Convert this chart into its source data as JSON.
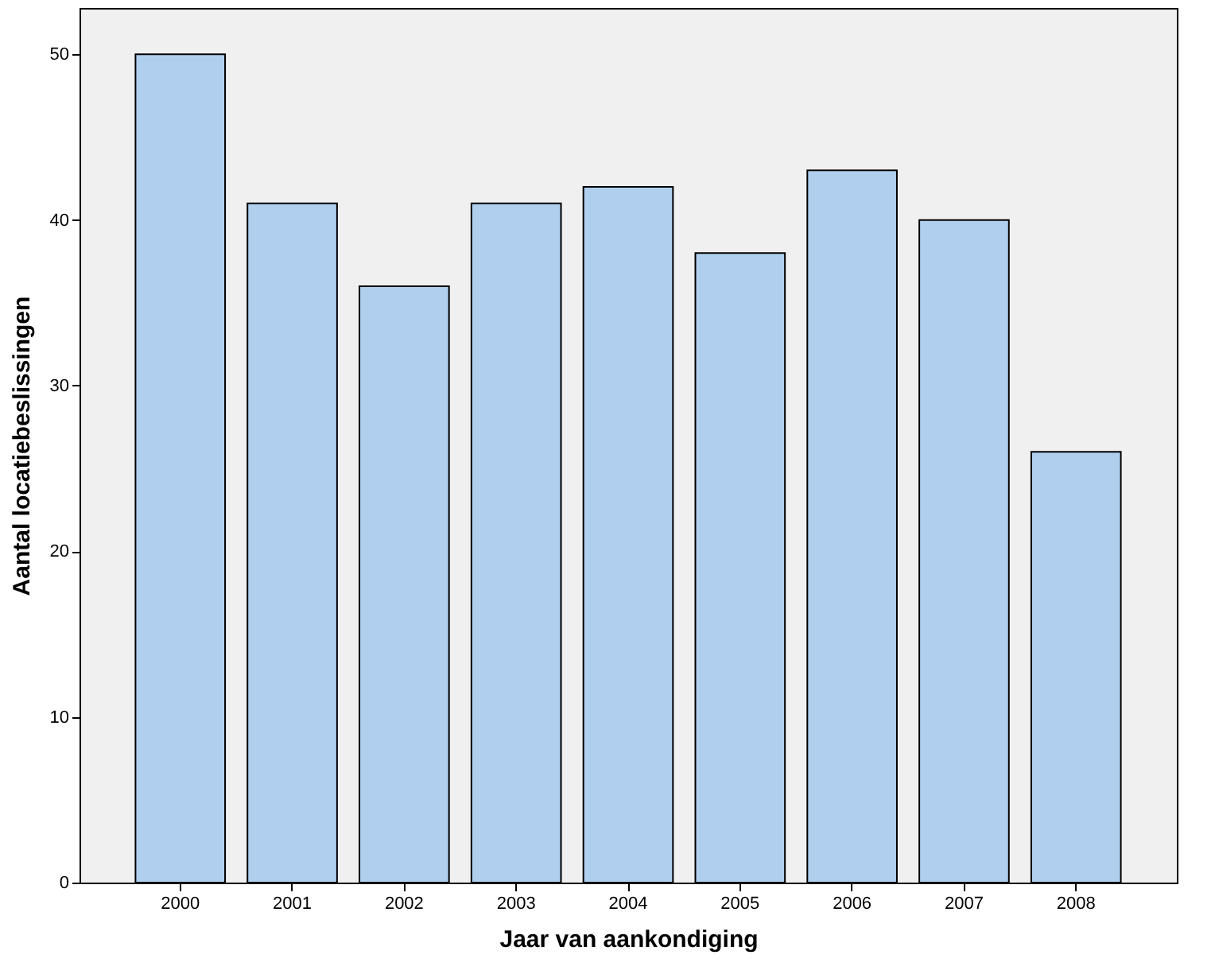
{
  "chart_data": {
    "type": "bar",
    "xlabel": "Jaar van aankondiging",
    "ylabel": "Aantal locatiebeslissingen",
    "categories": [
      "2000",
      "2001",
      "2002",
      "2003",
      "2004",
      "2005",
      "2006",
      "2007",
      "2008"
    ],
    "values": [
      50,
      41,
      36,
      41,
      42,
      38,
      43,
      40,
      26
    ],
    "color": "#b0cfef",
    "ylim": [
      0,
      52.8
    ],
    "yticks": [
      0,
      10,
      20,
      30,
      40,
      50
    ],
    "grid": false
  }
}
